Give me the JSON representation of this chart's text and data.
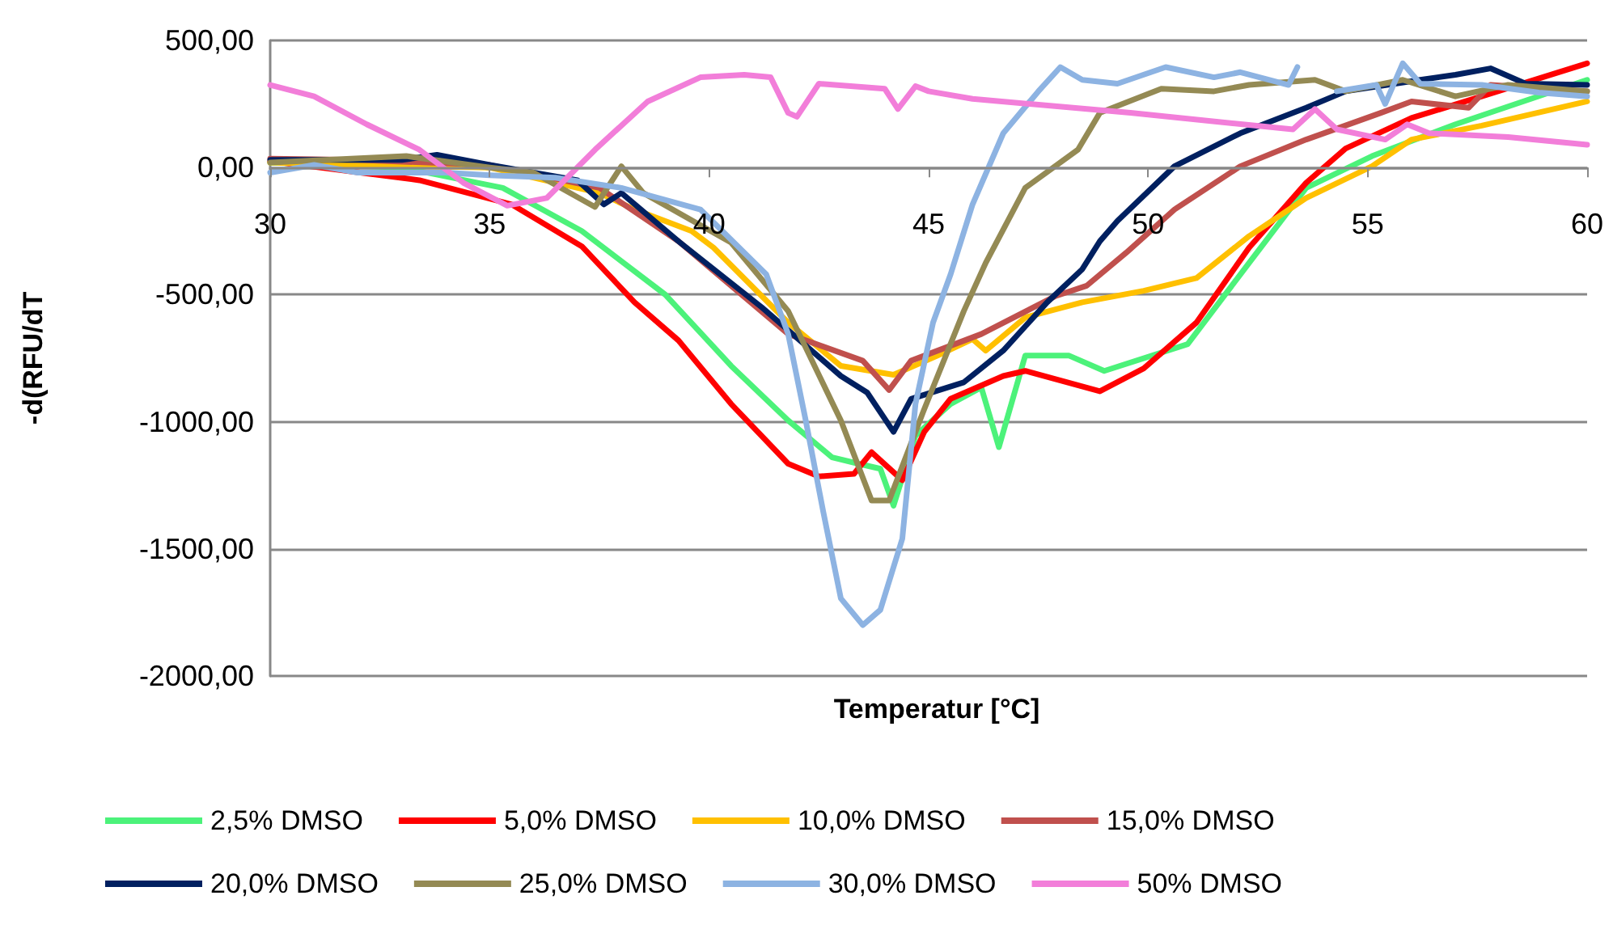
{
  "chart_data": {
    "type": "line",
    "xlabel": "Temperatur [°C]",
    "ylabel": "-d(RFU/dT",
    "xlim": [
      30,
      60
    ],
    "xticks": [
      30,
      35,
      40,
      45,
      50,
      55,
      60
    ],
    "ylim": [
      -2000,
      500
    ],
    "yticks": [
      {
        "value": -2000,
        "label": "-2000,00"
      },
      {
        "value": -1500,
        "label": "-1500,00"
      },
      {
        "value": -1000,
        "label": "-1000,00"
      },
      {
        "value": -500,
        "label": "-500,00"
      },
      {
        "value": 0,
        "label": "0,00"
      },
      {
        "value": 500,
        "label": "500,00"
      }
    ],
    "grid": "y",
    "legend": "bottom",
    "marker": "none",
    "line_style": "solid",
    "series": [
      {
        "name": "2,5% DMSO",
        "color": "#4cf27a",
        "x": [
          30,
          33,
          35.3,
          37.1,
          39,
          40.5,
          41.8,
          42.8,
          43.4,
          43.9,
          44.2,
          44.7,
          45.5,
          46.2,
          46.6,
          47.2,
          48.2,
          49,
          50.9,
          52.3,
          53.6,
          55.1,
          57,
          60
        ],
        "values": [
          20,
          0,
          -80,
          -250,
          -500,
          -780,
          -995,
          -1140,
          -1165,
          -1185,
          -1330,
          -1055,
          -930,
          -865,
          -1100,
          -740,
          -740,
          -800,
          -695,
          -375,
          -80,
          45,
          170,
          345
        ]
      },
      {
        "name": "5,0% DMSO",
        "color": "#ff0000",
        "x": [
          30,
          33.4,
          35.5,
          37.1,
          38.3,
          39.3,
          40.5,
          41.8,
          42.5,
          43.3,
          43.7,
          44.4,
          44.9,
          45.5,
          46.7,
          47.2,
          48.9,
          49.9,
          51.1,
          52.3,
          53.6,
          54.5,
          56,
          57.6,
          60
        ],
        "values": [
          25,
          -50,
          -145,
          -310,
          -530,
          -680,
          -930,
          -1165,
          -1215,
          -1205,
          -1120,
          -1230,
          -1040,
          -910,
          -820,
          -800,
          -880,
          -790,
          -610,
          -315,
          -60,
          75,
          195,
          280,
          410
        ]
      },
      {
        "name": "10,0% DMSO",
        "color": "#ffc000",
        "x": [
          30,
          32,
          35,
          37.5,
          38.3,
          39.6,
          40.1,
          41.8,
          43,
          44.2,
          45.2,
          46,
          46.3,
          47.2,
          48.5,
          49.9,
          51.1,
          52.3,
          53.6,
          55.1,
          56,
          57.6,
          60
        ],
        "values": [
          20,
          10,
          0,
          -100,
          -165,
          -250,
          -315,
          -610,
          -780,
          -815,
          -740,
          -675,
          -720,
          -590,
          -530,
          -485,
          -435,
          -270,
          -120,
          5,
          110,
          165,
          260
        ]
      },
      {
        "name": "15,0% DMSO",
        "color": "#c0504d",
        "x": [
          30,
          32,
          35,
          37.5,
          39.3,
          41.8,
          43.5,
          44.1,
          44.6,
          46.2,
          47.9,
          48.6,
          49.5,
          50.6,
          52.1,
          53.6,
          55.3,
          56,
          57.3,
          57.8,
          60
        ],
        "values": [
          35,
          30,
          10,
          -80,
          -290,
          -655,
          -760,
          -875,
          -760,
          -655,
          -505,
          -465,
          -335,
          -165,
          5,
          110,
          215,
          260,
          235,
          325,
          300
        ]
      },
      {
        "name": "20,0% DMSO",
        "color": "#002060",
        "x": [
          30,
          33,
          33.8,
          35,
          37,
          37.6,
          38,
          39.3,
          41.2,
          43,
          43.6,
          44.2,
          44.6,
          45.8,
          46.7,
          47.7,
          48.5,
          48.9,
          49.3,
          50.6,
          52.1,
          53.6,
          54.5,
          56.2,
          57,
          57.8,
          58.6,
          60
        ],
        "values": [
          30,
          30,
          50,
          10,
          -50,
          -145,
          -100,
          -290,
          -550,
          -820,
          -885,
          -1040,
          -910,
          -845,
          -720,
          -530,
          -400,
          -290,
          -210,
          5,
          135,
          235,
          300,
          345,
          365,
          390,
          330,
          325
        ]
      },
      {
        "name": "25,0% DMSO",
        "color": "#948a54",
        "x": [
          30,
          33.1,
          35,
          36,
          37.4,
          38,
          38.5,
          40.5,
          41.8,
          43,
          43.7,
          44.1,
          44.9,
          45.8,
          46.3,
          47.2,
          48.4,
          48.9,
          50.3,
          51.5,
          52.3,
          53.8,
          54.5,
          55.8,
          57,
          58.2,
          60
        ],
        "values": [
          20,
          45,
          0,
          -20,
          -155,
          5,
          -100,
          -295,
          -565,
          -995,
          -1310,
          -1310,
          -950,
          -565,
          -375,
          -80,
          70,
          215,
          310,
          300,
          325,
          345,
          300,
          345,
          280,
          325,
          300
        ]
      },
      {
        "name": "30,0% DMSO",
        "color": "#8db3e2",
        "x": [
          30,
          31,
          32,
          34,
          35,
          36.5,
          38,
          39.8,
          41.3,
          41.8,
          42.2,
          42.6,
          43,
          43.5,
          43.9,
          44.4,
          44.7,
          45.1,
          45.5,
          46,
          46.7,
          47.5,
          48,
          48.5,
          49.3,
          50.4,
          51.5,
          52.1,
          53.2,
          53.4,
          53.9,
          54.3,
          55.2,
          55.4,
          55.8,
          56.2,
          57.6,
          58.9,
          60
        ],
        "values": [
          -20,
          10,
          -20,
          -20,
          -30,
          -40,
          -80,
          -165,
          -420,
          -655,
          -995,
          -1355,
          -1695,
          -1800,
          -1740,
          -1460,
          -930,
          -610,
          -420,
          -145,
          135,
          300,
          395,
          345,
          330,
          395,
          355,
          375,
          325,
          395,
          null,
          300,
          325,
          250,
          410,
          330,
          325,
          295,
          280
        ]
      },
      {
        "name": "50% DMSO",
        "color": "#f27ed9",
        "x": [
          30,
          31,
          32.2,
          33.4,
          34.4,
          35.4,
          36.3,
          37.4,
          38.6,
          39.8,
          40.8,
          41.4,
          41.8,
          42,
          42.5,
          44,
          44.3,
          44.7,
          45,
          46,
          49.6,
          53.3,
          53.8,
          54.3,
          55.4,
          55.9,
          56.4,
          58.2,
          60
        ],
        "values": [
          325,
          280,
          170,
          70,
          -60,
          -150,
          -120,
          70,
          260,
          355,
          365,
          355,
          215,
          200,
          330,
          310,
          230,
          320,
          300,
          270,
          215,
          150,
          230,
          150,
          110,
          170,
          135,
          120,
          90
        ]
      }
    ]
  }
}
